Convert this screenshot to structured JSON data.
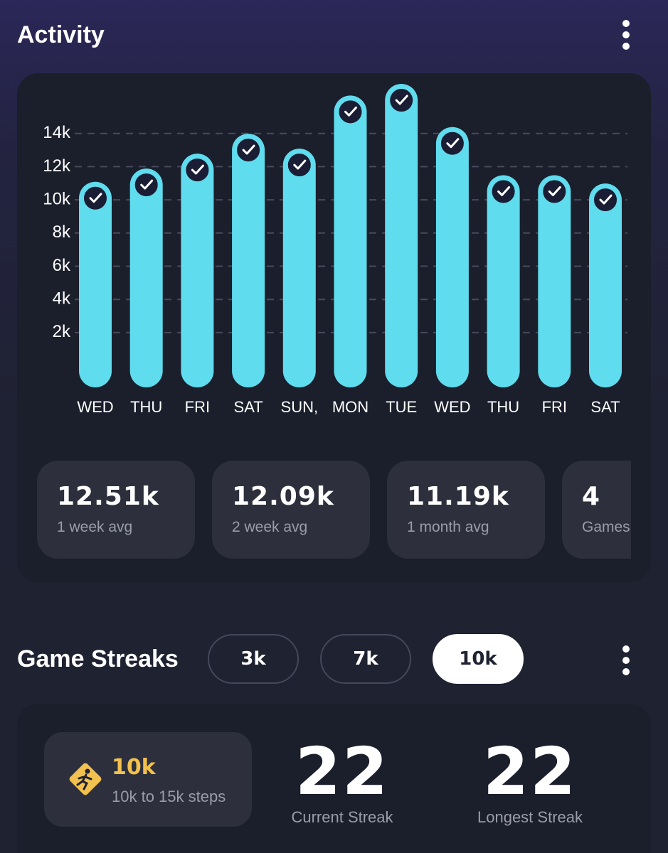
{
  "header": {
    "title": "Activity"
  },
  "chart_data": {
    "type": "bar",
    "categories": [
      "WED",
      "THU",
      "FRI",
      "SAT",
      "SUN,",
      "MON",
      "TUE",
      "WED",
      "THU",
      "FRI",
      "SAT"
    ],
    "values": [
      10100,
      10900,
      11800,
      13000,
      12100,
      15300,
      16000,
      13400,
      10500,
      10500,
      10000
    ],
    "color": "#5fdcee",
    "ylim": [
      0,
      17500
    ],
    "yticks": [
      {
        "value": 2000,
        "label": "2k"
      },
      {
        "value": 4000,
        "label": "4k"
      },
      {
        "value": 6000,
        "label": "6k"
      },
      {
        "value": 8000,
        "label": "8k"
      },
      {
        "value": 10000,
        "label": "10k"
      },
      {
        "value": 12000,
        "label": "12k"
      },
      {
        "value": 14000,
        "label": "14k"
      }
    ],
    "grid": true
  },
  "stats": [
    {
      "value": "12.51k",
      "label": "1 week avg"
    },
    {
      "value": "12.09k",
      "label": "2 week avg"
    },
    {
      "value": "11.19k",
      "label": "1 month avg"
    },
    {
      "value": "4",
      "label": "Games"
    }
  ],
  "streaks": {
    "title": "Game Streaks",
    "tabs": [
      "3k",
      "7k",
      "10k"
    ],
    "selected": 2,
    "level": {
      "name": "10k",
      "range": "10k to 15k steps"
    },
    "stats": [
      {
        "value": 22,
        "label": "Current Streak"
      },
      {
        "value": 22,
        "label": "Longest Streak"
      }
    ]
  }
}
